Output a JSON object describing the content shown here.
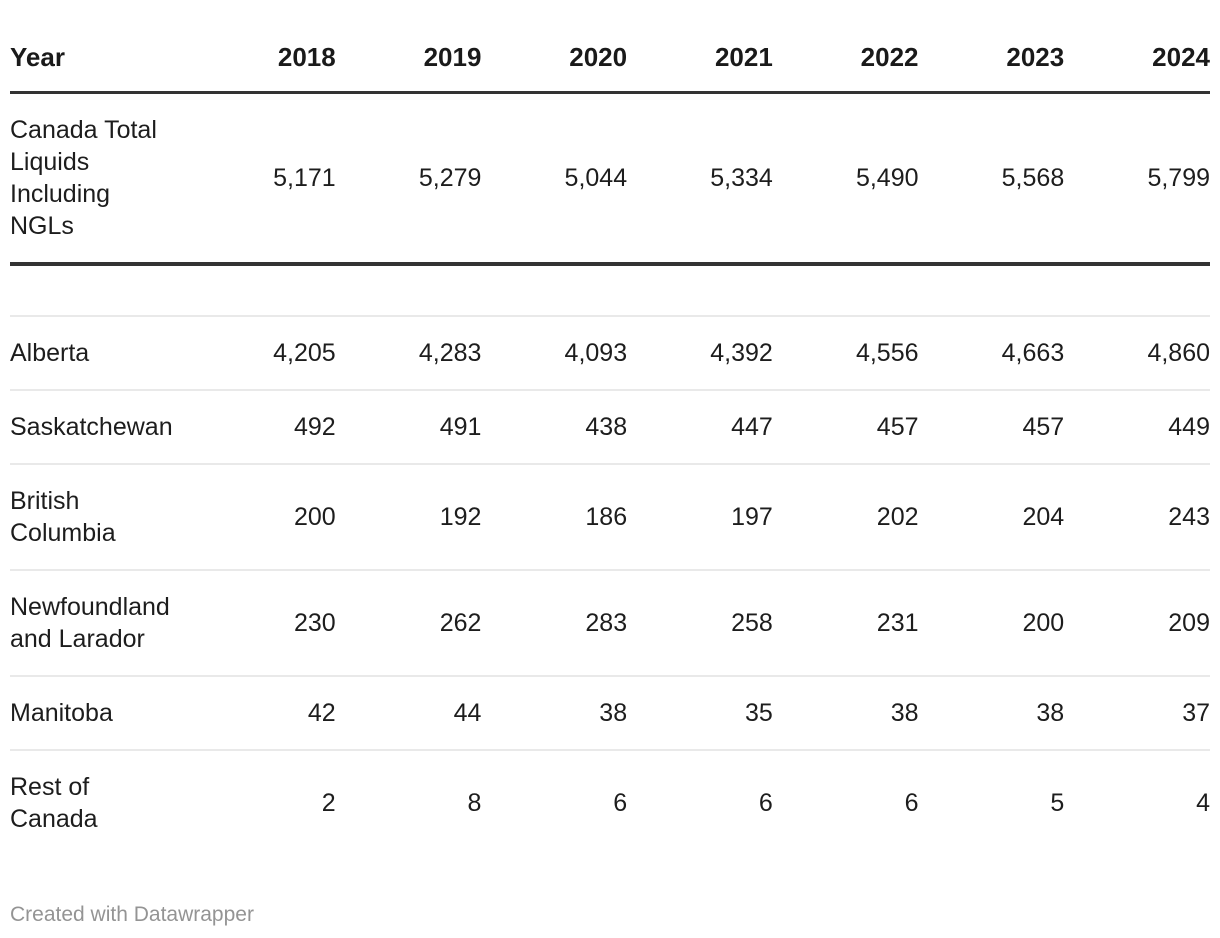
{
  "colors": {
    "text": "#1d1d1d",
    "heavy_rule": "#333333",
    "light_rule": "#e9e9e9",
    "credit_gray": "#949494",
    "background": "#ffffff"
  },
  "table": {
    "header": {
      "year_label": "Year",
      "years": [
        "2018",
        "2019",
        "2020",
        "2021",
        "2022",
        "2023",
        "2024"
      ]
    },
    "total": {
      "label": "Canada Total\nLiquids\nIncluding\nNGLs",
      "values": [
        "5,171",
        "5,279",
        "5,044",
        "5,334",
        "5,490",
        "5,568",
        "5,799"
      ]
    },
    "rows": [
      {
        "label": "Alberta",
        "values": [
          "4,205",
          "4,283",
          "4,093",
          "4,392",
          "4,556",
          "4,663",
          "4,860"
        ]
      },
      {
        "label": "Saskatchewan",
        "values": [
          "492",
          "491",
          "438",
          "447",
          "457",
          "457",
          "449"
        ]
      },
      {
        "label": "British\nColumbia",
        "values": [
          "200",
          "192",
          "186",
          "197",
          "202",
          "204",
          "243"
        ]
      },
      {
        "label": "Newfoundland\nand Larador",
        "values": [
          "230",
          "262",
          "283",
          "258",
          "231",
          "200",
          "209"
        ]
      },
      {
        "label": "Manitoba",
        "values": [
          "42",
          "44",
          "38",
          "35",
          "38",
          "38",
          "37"
        ]
      },
      {
        "label": "Rest of\nCanada",
        "values": [
          "2",
          "8",
          "6",
          "6",
          "6",
          "5",
          "4"
        ]
      }
    ]
  },
  "footer": {
    "credit": "Created with Datawrapper"
  },
  "chart_data": {
    "type": "table",
    "title": "",
    "columns": [
      "Year",
      "2018",
      "2019",
      "2020",
      "2021",
      "2022",
      "2023",
      "2024"
    ],
    "rows": [
      {
        "label": "Canada Total Liquids Including NGLs",
        "values": [
          5171,
          5279,
          5044,
          5334,
          5490,
          5568,
          5799
        ]
      },
      {
        "label": "Alberta",
        "values": [
          4205,
          4283,
          4093,
          4392,
          4556,
          4663,
          4860
        ]
      },
      {
        "label": "Saskatchewan",
        "values": [
          492,
          491,
          438,
          447,
          457,
          457,
          449
        ]
      },
      {
        "label": "British Columbia",
        "values": [
          200,
          192,
          186,
          197,
          202,
          204,
          243
        ]
      },
      {
        "label": "Newfoundland and Larador",
        "values": [
          230,
          262,
          283,
          258,
          231,
          200,
          209
        ]
      },
      {
        "label": "Manitoba",
        "values": [
          42,
          44,
          38,
          35,
          38,
          38,
          37
        ]
      },
      {
        "label": "Rest of Canada",
        "values": [
          2,
          8,
          6,
          6,
          6,
          5,
          4
        ]
      }
    ],
    "layout": {
      "number_format": "thousands-comma",
      "grid": "horizontal-rules",
      "credit": "Created with Datawrapper"
    }
  }
}
